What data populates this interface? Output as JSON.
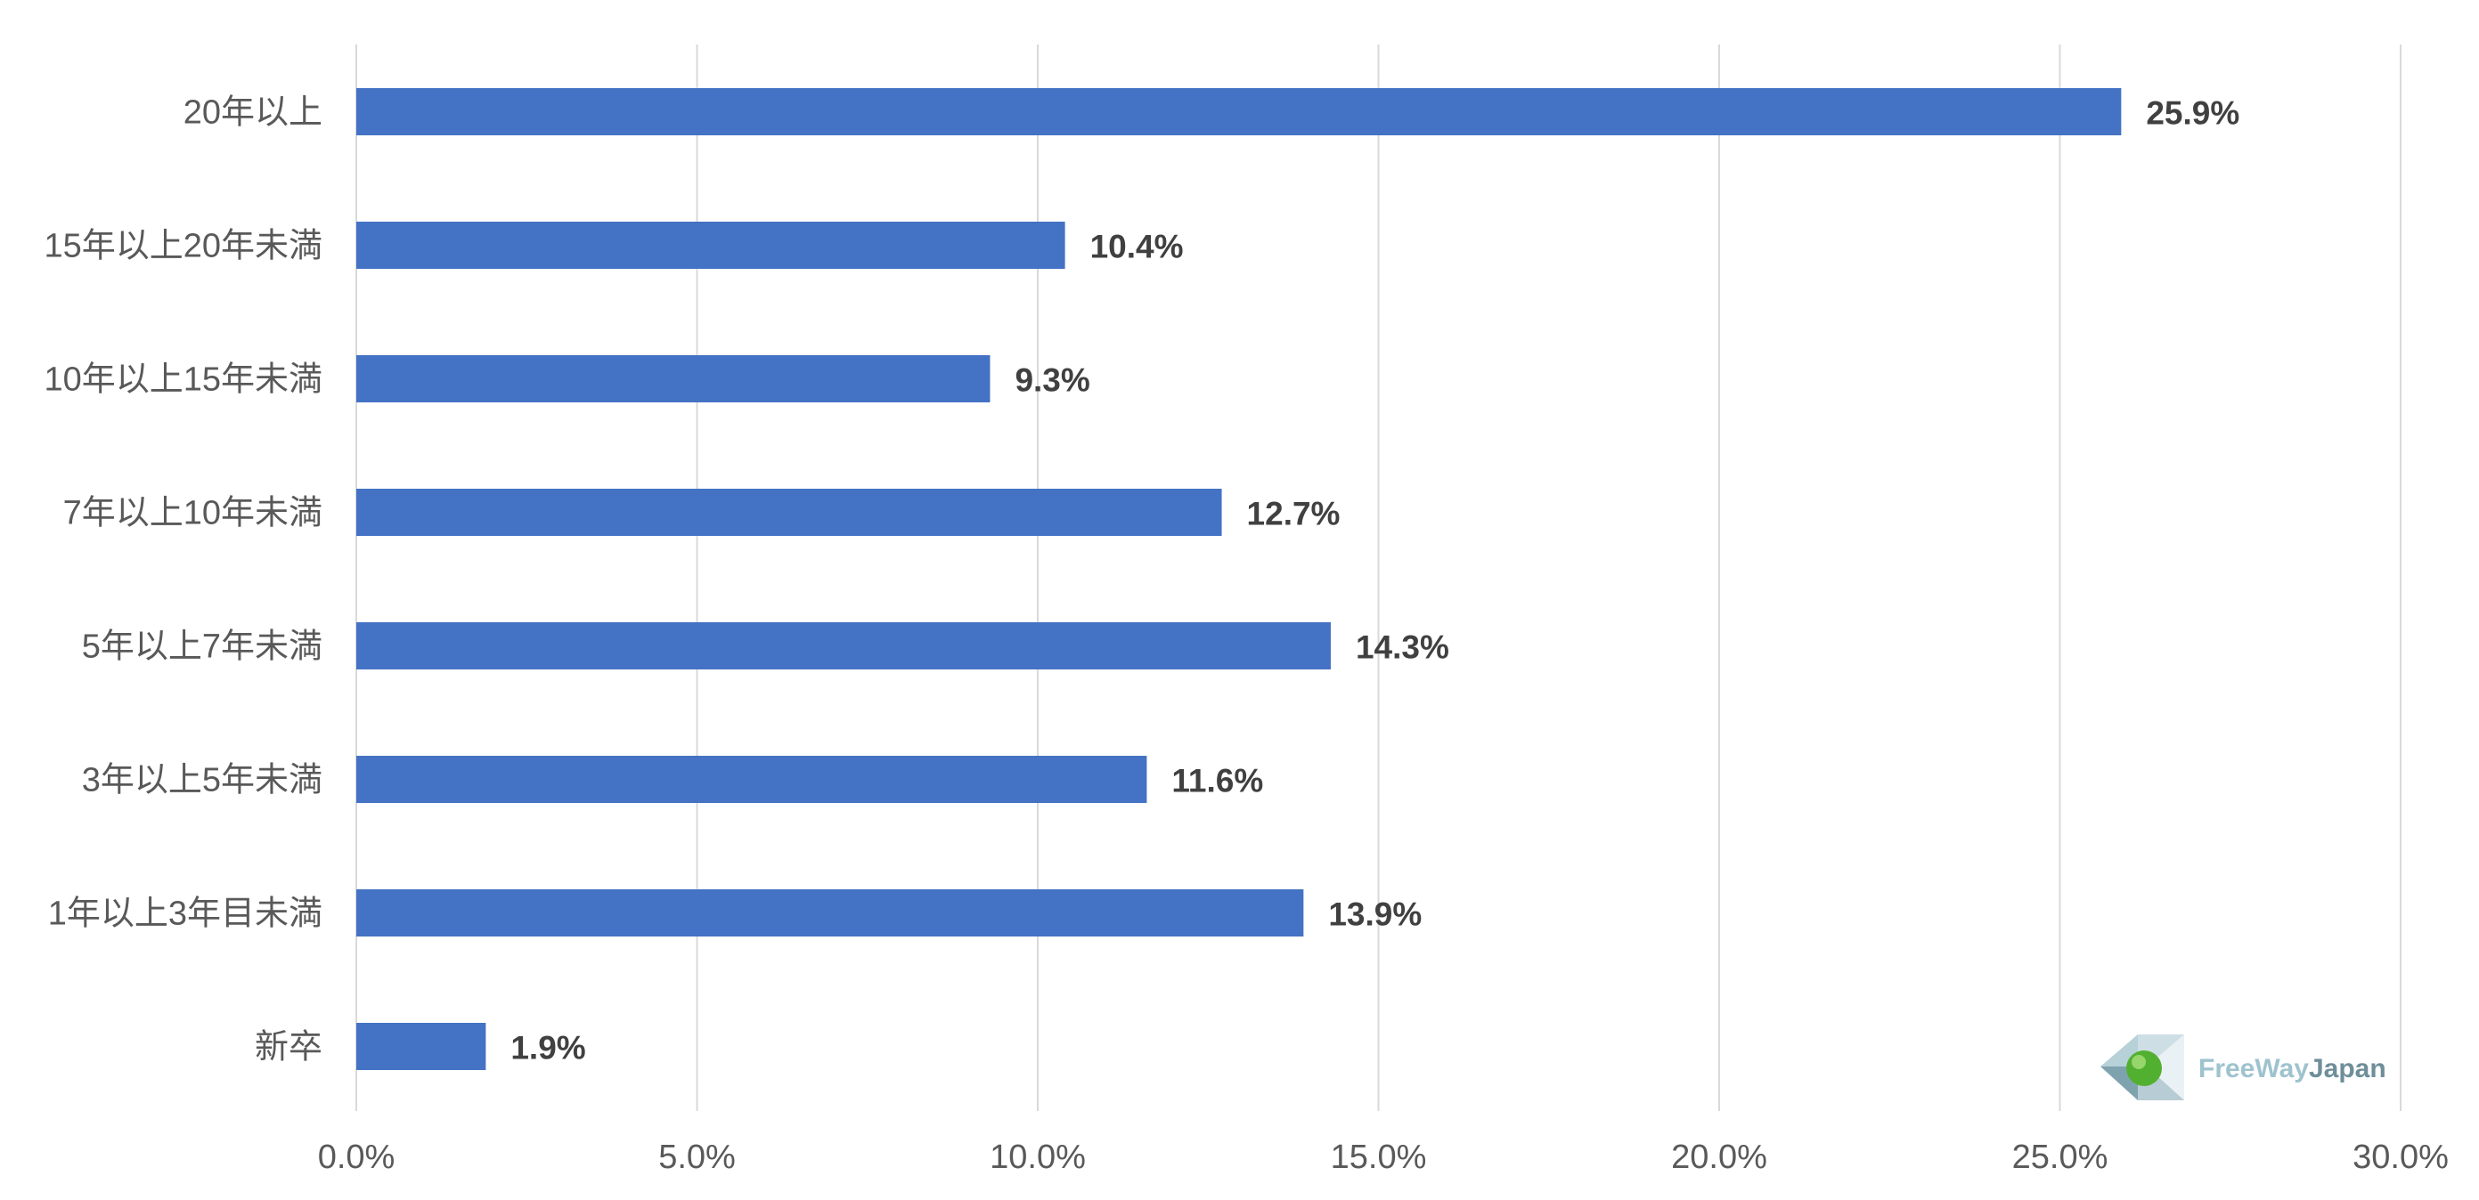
{
  "chart_data": {
    "type": "bar",
    "orientation": "horizontal",
    "categories": [
      "20年以上",
      "15年以上20年未満",
      "10年以上15年未満",
      "7年以上10年未満",
      "5年以上7年未満",
      "3年以上5年未満",
      "1年以上3年目未満",
      "新卒"
    ],
    "values": [
      25.9,
      10.4,
      9.3,
      12.7,
      14.3,
      11.6,
      13.9,
      1.9
    ],
    "data_labels": [
      "25.9%",
      "10.4%",
      "9.3%",
      "12.7%",
      "14.3%",
      "11.6%",
      "13.9%",
      "1.9%"
    ],
    "xlim": [
      0,
      30
    ],
    "x_ticks": [
      0,
      5,
      10,
      15,
      20,
      25,
      30
    ],
    "x_tick_labels": [
      "0.0%",
      "5.0%",
      "10.0%",
      "15.0%",
      "20.0%",
      "25.0%",
      "30.0%"
    ],
    "grid": "vertical",
    "legend": "none",
    "colors": {
      "bar": "#4472C4",
      "grid": "#D9D9D9"
    }
  },
  "logo": {
    "part1": "FreeWay",
    "part2": "Japan",
    "colors": {
      "part1": "#9EC3CE",
      "part2": "#6E8E9A"
    }
  }
}
